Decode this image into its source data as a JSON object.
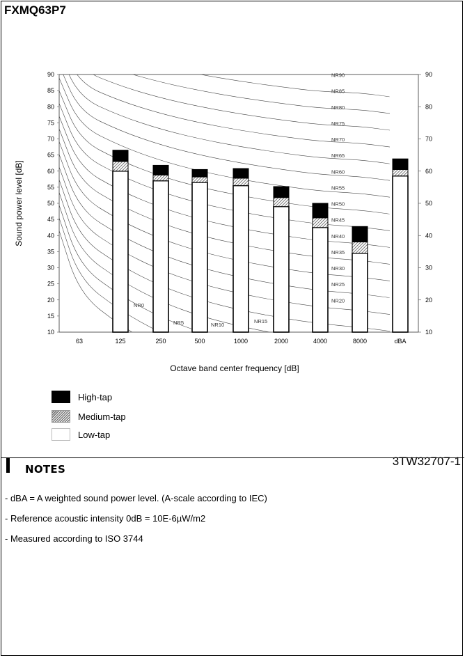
{
  "model": "FXMQ63P7",
  "chart_data": {
    "type": "bar",
    "stacked": true,
    "categories": [
      "63",
      "125",
      "250",
      "500",
      "1000",
      "2000",
      "4000",
      "8000",
      "dBA"
    ],
    "series": [
      {
        "name": "Low-tap",
        "color": "#ffffff",
        "values": [
          null,
          60,
          57,
          56.5,
          55.5,
          49,
          42.5,
          34.5,
          58.5
        ]
      },
      {
        "name": "Medium-tap",
        "color": "#888888",
        "values": [
          null,
          63,
          58.8,
          58.2,
          57.8,
          51.8,
          45.5,
          38,
          60.5
        ]
      },
      {
        "name": "High-tap",
        "color": "#000000",
        "values": [
          null,
          66.5,
          61.8,
          60.5,
          60.8,
          55.2,
          50,
          42.8,
          63.8
        ]
      }
    ],
    "ylim": [
      10,
      90
    ],
    "yticks": [
      10,
      15,
      20,
      25,
      30,
      35,
      40,
      45,
      50,
      55,
      60,
      65,
      70,
      75,
      80,
      85,
      90
    ],
    "right_ticks": [
      10,
      20,
      30,
      40,
      50,
      60,
      70,
      80,
      90
    ],
    "xlabel": "Octave band center frequency [dB]",
    "ylabel": "Sound power level [dB]",
    "nr_curves": [
      {
        "label": "NR0",
        "nr": 0
      },
      {
        "label": "NR5",
        "nr": 5
      },
      {
        "label": "NR10",
        "nr": 10
      },
      {
        "label": "NR15",
        "nr": 15
      },
      {
        "label": "NR20",
        "nr": 20
      },
      {
        "label": "NR25",
        "nr": 25
      },
      {
        "label": "NR30",
        "nr": 30
      },
      {
        "label": "NR35",
        "nr": 35
      },
      {
        "label": "NR40",
        "nr": 40
      },
      {
        "label": "NR45",
        "nr": 45
      },
      {
        "label": "NR50",
        "nr": 50
      },
      {
        "label": "NR55",
        "nr": 55
      },
      {
        "label": "NR60",
        "nr": 60
      },
      {
        "label": "NR65",
        "nr": 65
      },
      {
        "label": "NR70",
        "nr": 70
      },
      {
        "label": "NR75",
        "nr": 75
      },
      {
        "label": "NR80",
        "nr": 80
      },
      {
        "label": "NR85",
        "nr": 85
      },
      {
        "label": "NR90",
        "nr": 90
      }
    ],
    "legend": [
      "High-tap",
      "Medium-tap",
      "Low-tap"
    ],
    "legend_position": "below-left"
  },
  "doc_ref": "3TW32707-1",
  "notes": {
    "title": "NOTES",
    "items": [
      "- dBA = A weighted sound power level. (A-scale according to IEC)",
      "- Reference acoustic intensity 0dB = 10E-6µW/m2",
      "- Measured according to ISO 3744"
    ]
  }
}
